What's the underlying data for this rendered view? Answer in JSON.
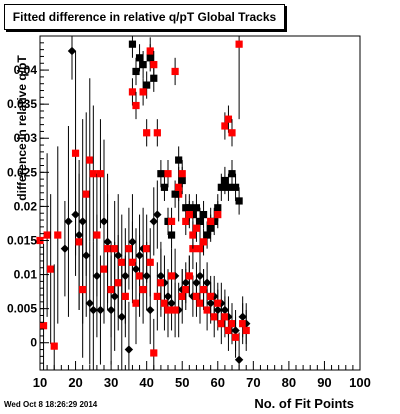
{
  "title": "Fitted difference in relative q/pT  Global Tracks",
  "timestamp": "Wed Oct  8 18:26:29 2014",
  "chart_data": {
    "type": "scatter",
    "title": "Fitted difference in relative q/pT  Global Tracks",
    "xlabel": "No. of Fit Points",
    "ylabel": "difference in relative q/pT",
    "xlim": [
      10,
      100
    ],
    "ylim": [
      -0.004,
      0.045
    ],
    "x_ticks": [
      10,
      20,
      30,
      40,
      50,
      60,
      70,
      80,
      90,
      100
    ],
    "y_ticks": [
      0,
      0.005,
      0.01,
      0.015,
      0.02,
      0.025,
      0.03,
      0.035,
      0.04
    ],
    "y_tick_labels": [
      "0",
      "0.005",
      "0.01",
      "0.015",
      "0.02",
      "0.025",
      "0.03",
      "0.035",
      "0.04"
    ],
    "grid": false,
    "legend": "none",
    "series": [
      {
        "marker": "diamond",
        "color": "#000000",
        "points": [
          {
            "x": 17,
            "y": 0.0138,
            "e": 0.007
          },
          {
            "x": 18,
            "y": 0.0178,
            "e": 0.014
          },
          {
            "x": 19,
            "y": 0.0428,
            "e": 0.0042
          },
          {
            "x": 20,
            "y": 0.0188,
            "e": 0.009
          },
          {
            "x": 21,
            "y": 0.0158,
            "e": 0.011
          },
          {
            "x": 22,
            "y": 0.0178,
            "e": 0.015
          },
          {
            "x": 23,
            "y": 0.0128,
            "e": 0.009
          },
          {
            "x": 24,
            "y": 0.0058,
            "e": 0.009
          },
          {
            "x": 25,
            "y": 0.0048,
            "e": 0.01
          },
          {
            "x": 26,
            "y": 0.0098,
            "e": 0.009
          },
          {
            "x": 27,
            "y": 0.0048,
            "e": 0.008
          },
          {
            "x": 28,
            "y": 0.0178,
            "e": 0.012
          },
          {
            "x": 29,
            "y": 0.0148,
            "e": 0.01
          },
          {
            "x": 30,
            "y": 0.0048,
            "e": 0.008
          },
          {
            "x": 31,
            "y": 0.0068,
            "e": 0.008
          },
          {
            "x": 32,
            "y": 0.0128,
            "e": 0.009
          },
          {
            "x": 33,
            "y": 0.0038,
            "e": 0.008
          },
          {
            "x": 34,
            "y": 0.0098,
            "e": 0.007
          },
          {
            "x": 35,
            "y": -0.001,
            "e": 0.007
          },
          {
            "x": 36,
            "y": 0.0148,
            "e": 0.007
          },
          {
            "x": 37,
            "y": 0.0108,
            "e": 0.006
          },
          {
            "x": 38,
            "y": 0.0128,
            "e": 0.006
          },
          {
            "x": 39,
            "y": 0.0138,
            "e": 0.006
          },
          {
            "x": 40,
            "y": 0.0098,
            "e": 0.005
          },
          {
            "x": 41,
            "y": 0.0048,
            "e": 0.005
          },
          {
            "x": 42,
            "y": 0.0178,
            "e": 0.005
          },
          {
            "x": 43,
            "y": 0.0188,
            "e": 0.005
          },
          {
            "x": 44,
            "y": 0.0098,
            "e": 0.005
          },
          {
            "x": 45,
            "y": 0.0088,
            "e": 0.004
          },
          {
            "x": 46,
            "y": 0.0068,
            "e": 0.004
          },
          {
            "x": 47,
            "y": 0.0058,
            "e": 0.004
          },
          {
            "x": 48,
            "y": 0.0098,
            "e": 0.004
          },
          {
            "x": 49,
            "y": 0.0048,
            "e": 0.004
          },
          {
            "x": 50,
            "y": 0.0078,
            "e": 0.003
          },
          {
            "x": 51,
            "y": 0.0088,
            "e": 0.003
          },
          {
            "x": 52,
            "y": 0.0098,
            "e": 0.003
          },
          {
            "x": 53,
            "y": 0.0068,
            "e": 0.003
          },
          {
            "x": 54,
            "y": 0.0088,
            "e": 0.003
          },
          {
            "x": 55,
            "y": 0.0098,
            "e": 0.003
          },
          {
            "x": 56,
            "y": 0.0078,
            "e": 0.003
          },
          {
            "x": 57,
            "y": 0.0088,
            "e": 0.003
          },
          {
            "x": 58,
            "y": 0.0058,
            "e": 0.003
          },
          {
            "x": 59,
            "y": 0.0068,
            "e": 0.003
          },
          {
            "x": 60,
            "y": 0.0048,
            "e": 0.003
          },
          {
            "x": 61,
            "y": 0.0058,
            "e": 0.003
          },
          {
            "x": 62,
            "y": 0.0048,
            "e": 0.003
          },
          {
            "x": 63,
            "y": 0.0038,
            "e": 0.003
          },
          {
            "x": 64,
            "y": 0.0028,
            "e": 0.003
          },
          {
            "x": 65,
            "y": 0.0018,
            "e": 0.003
          },
          {
            "x": 66,
            "y": -0.0025,
            "e": 0.004
          },
          {
            "x": 67,
            "y": 0.0038,
            "e": 0.003
          },
          {
            "x": 68,
            "y": 0.0028,
            "e": 0.003
          }
        ]
      },
      {
        "marker": "square",
        "color": "#ff0000",
        "points": [
          {
            "x": 10,
            "y": 0.015,
            "e": 0.015
          },
          {
            "x": 11,
            "y": 0.0025,
            "e": 0.012
          },
          {
            "x": 12,
            "y": 0.0158,
            "e": 0.012
          },
          {
            "x": 13,
            "y": 0.0108,
            "e": 0.011
          },
          {
            "x": 14,
            "y": -0.0005,
            "e": 0.012
          },
          {
            "x": 15,
            "y": 0.0158,
            "e": 0.013
          },
          {
            "x": 20,
            "y": 0.0278,
            "e": 0.015
          },
          {
            "x": 21,
            "y": 0.0148,
            "e": 0.01
          },
          {
            "x": 22,
            "y": 0.0078,
            "e": 0.01
          },
          {
            "x": 23,
            "y": 0.0218,
            "e": 0.012
          },
          {
            "x": 24,
            "y": 0.0268,
            "e": 0.012
          },
          {
            "x": 25,
            "y": 0.0248,
            "e": 0.01
          },
          {
            "x": 26,
            "y": 0.0158,
            "e": 0.009
          },
          {
            "x": 27,
            "y": 0.0248,
            "e": 0.008
          },
          {
            "x": 28,
            "y": 0.0108,
            "e": 0.008
          },
          {
            "x": 29,
            "y": 0.0138,
            "e": 0.008
          },
          {
            "x": 30,
            "y": 0.0078,
            "e": 0.007
          },
          {
            "x": 31,
            "y": 0.0138,
            "e": 0.007
          },
          {
            "x": 32,
            "y": 0.0088,
            "e": 0.007
          },
          {
            "x": 33,
            "y": 0.0118,
            "e": 0.007
          },
          {
            "x": 34,
            "y": 0.0068,
            "e": 0.006
          },
          {
            "x": 35,
            "y": 0.0138,
            "e": 0.006
          },
          {
            "x": 36,
            "y": 0.0118,
            "e": 0.006
          },
          {
            "x": 37,
            "y": 0.0058,
            "e": 0.006
          },
          {
            "x": 38,
            "y": 0.0098,
            "e": 0.006
          },
          {
            "x": 39,
            "y": 0.0078,
            "e": 0.005
          },
          {
            "x": 40,
            "y": 0.0138,
            "e": 0.005
          },
          {
            "x": 41,
            "y": 0.0118,
            "e": 0.005
          },
          {
            "x": 42,
            "y": -0.0015,
            "e": 0.005
          },
          {
            "x": 43,
            "y": 0.0068,
            "e": 0.005
          },
          {
            "x": 44,
            "y": 0.0088,
            "e": 0.005
          },
          {
            "x": 45,
            "y": 0.0058,
            "e": 0.004
          },
          {
            "x": 46,
            "y": 0.0048,
            "e": 0.004
          },
          {
            "x": 47,
            "y": 0.0098,
            "e": 0.004
          },
          {
            "x": 48,
            "y": 0.0048,
            "e": 0.004
          },
          {
            "x": 49,
            "y": 0.0218,
            "e": 0.004
          },
          {
            "x": 50,
            "y": 0.0068,
            "e": 0.004
          },
          {
            "x": 51,
            "y": 0.0078,
            "e": 0.003
          },
          {
            "x": 52,
            "y": 0.0098,
            "e": 0.003
          },
          {
            "x": 53,
            "y": 0.0138,
            "e": 0.003
          },
          {
            "x": 54,
            "y": 0.0068,
            "e": 0.003
          },
          {
            "x": 55,
            "y": 0.0058,
            "e": 0.003
          },
          {
            "x": 56,
            "y": 0.0078,
            "e": 0.003
          },
          {
            "x": 57,
            "y": 0.0048,
            "e": 0.003
          },
          {
            "x": 58,
            "y": 0.0068,
            "e": 0.003
          },
          {
            "x": 59,
            "y": 0.0038,
            "e": 0.003
          },
          {
            "x": 60,
            "y": 0.0058,
            "e": 0.003
          },
          {
            "x": 61,
            "y": 0.0028,
            "e": 0.003
          },
          {
            "x": 62,
            "y": 0.0038,
            "e": 0.003
          },
          {
            "x": 63,
            "y": 0.0018,
            "e": 0.003
          },
          {
            "x": 64,
            "y": 0.0028,
            "e": 0.003
          },
          {
            "x": 65,
            "y": 0.0008,
            "e": 0.003
          },
          {
            "x": 66,
            "y": 0.0438,
            "e": 0.011
          },
          {
            "x": 67,
            "y": 0.0028,
            "e": 0.003
          },
          {
            "x": 68,
            "y": 0.0018,
            "e": 0.003
          }
        ]
      },
      {
        "marker": "square",
        "color": "#000000",
        "points": [
          {
            "x": 36,
            "y": 0.0438,
            "e": 0.002
          },
          {
            "x": 37,
            "y": 0.0398,
            "e": 0.002
          },
          {
            "x": 38,
            "y": 0.0418,
            "e": 0.002
          },
          {
            "x": 39,
            "y": 0.0408,
            "e": 0.002
          },
          {
            "x": 40,
            "y": 0.0378,
            "e": 0.002
          },
          {
            "x": 41,
            "y": 0.0418,
            "e": 0.002
          },
          {
            "x": 42,
            "y": 0.0388,
            "e": 0.002
          },
          {
            "x": 44,
            "y": 0.0248,
            "e": 0.002
          },
          {
            "x": 45,
            "y": 0.0228,
            "e": 0.002
          },
          {
            "x": 46,
            "y": 0.0178,
            "e": 0.002
          },
          {
            "x": 47,
            "y": 0.0158,
            "e": 0.002
          },
          {
            "x": 48,
            "y": 0.0218,
            "e": 0.002
          },
          {
            "x": 49,
            "y": 0.0268,
            "e": 0.002
          },
          {
            "x": 50,
            "y": 0.0238,
            "e": 0.002
          },
          {
            "x": 51,
            "y": 0.0198,
            "e": 0.002
          },
          {
            "x": 52,
            "y": 0.0198,
            "e": 0.002
          },
          {
            "x": 53,
            "y": 0.0188,
            "e": 0.002
          },
          {
            "x": 54,
            "y": 0.0198,
            "e": 0.002
          },
          {
            "x": 55,
            "y": 0.0178,
            "e": 0.002
          },
          {
            "x": 56,
            "y": 0.0188,
            "e": 0.002
          },
          {
            "x": 57,
            "y": 0.0158,
            "e": 0.002
          },
          {
            "x": 58,
            "y": 0.0168,
            "e": 0.002
          },
          {
            "x": 59,
            "y": 0.0178,
            "e": 0.002
          },
          {
            "x": 60,
            "y": 0.0198,
            "e": 0.002
          },
          {
            "x": 61,
            "y": 0.0228,
            "e": 0.002
          },
          {
            "x": 62,
            "y": 0.0238,
            "e": 0.002
          },
          {
            "x": 63,
            "y": 0.0228,
            "e": 0.002
          },
          {
            "x": 64,
            "y": 0.0248,
            "e": 0.002
          },
          {
            "x": 65,
            "y": 0.0228,
            "e": 0.002
          },
          {
            "x": 66,
            "y": 0.0208,
            "e": 0.002
          }
        ]
      },
      {
        "marker": "square",
        "color": "#ff0000",
        "points": [
          {
            "x": 36,
            "y": 0.0368,
            "e": 0.002
          },
          {
            "x": 37,
            "y": 0.0348,
            "e": 0.002
          },
          {
            "x": 39,
            "y": 0.0368,
            "e": 0.002
          },
          {
            "x": 40,
            "y": 0.0308,
            "e": 0.002
          },
          {
            "x": 41,
            "y": 0.0428,
            "e": 0.002
          },
          {
            "x": 42,
            "y": 0.0408,
            "e": 0.002
          },
          {
            "x": 43,
            "y": 0.0308,
            "e": 0.002
          },
          {
            "x": 46,
            "y": 0.0248,
            "e": 0.002
          },
          {
            "x": 47,
            "y": 0.0178,
            "e": 0.002
          },
          {
            "x": 48,
            "y": 0.0398,
            "e": 0.002
          },
          {
            "x": 49,
            "y": 0.0228,
            "e": 0.002
          },
          {
            "x": 50,
            "y": 0.0248,
            "e": 0.002
          },
          {
            "x": 51,
            "y": 0.0178,
            "e": 0.002
          },
          {
            "x": 52,
            "y": 0.0188,
            "e": 0.002
          },
          {
            "x": 53,
            "y": 0.0158,
            "e": 0.002
          },
          {
            "x": 54,
            "y": 0.0168,
            "e": 0.002
          },
          {
            "x": 55,
            "y": 0.0138,
            "e": 0.002
          },
          {
            "x": 56,
            "y": 0.0148,
            "e": 0.002
          },
          {
            "x": 58,
            "y": 0.0178,
            "e": 0.002
          },
          {
            "x": 60,
            "y": 0.0188,
            "e": 0.002
          },
          {
            "x": 62,
            "y": 0.0318,
            "e": 0.002
          },
          {
            "x": 63,
            "y": 0.0328,
            "e": 0.002
          },
          {
            "x": 64,
            "y": 0.0308,
            "e": 0.002
          }
        ]
      }
    ]
  }
}
